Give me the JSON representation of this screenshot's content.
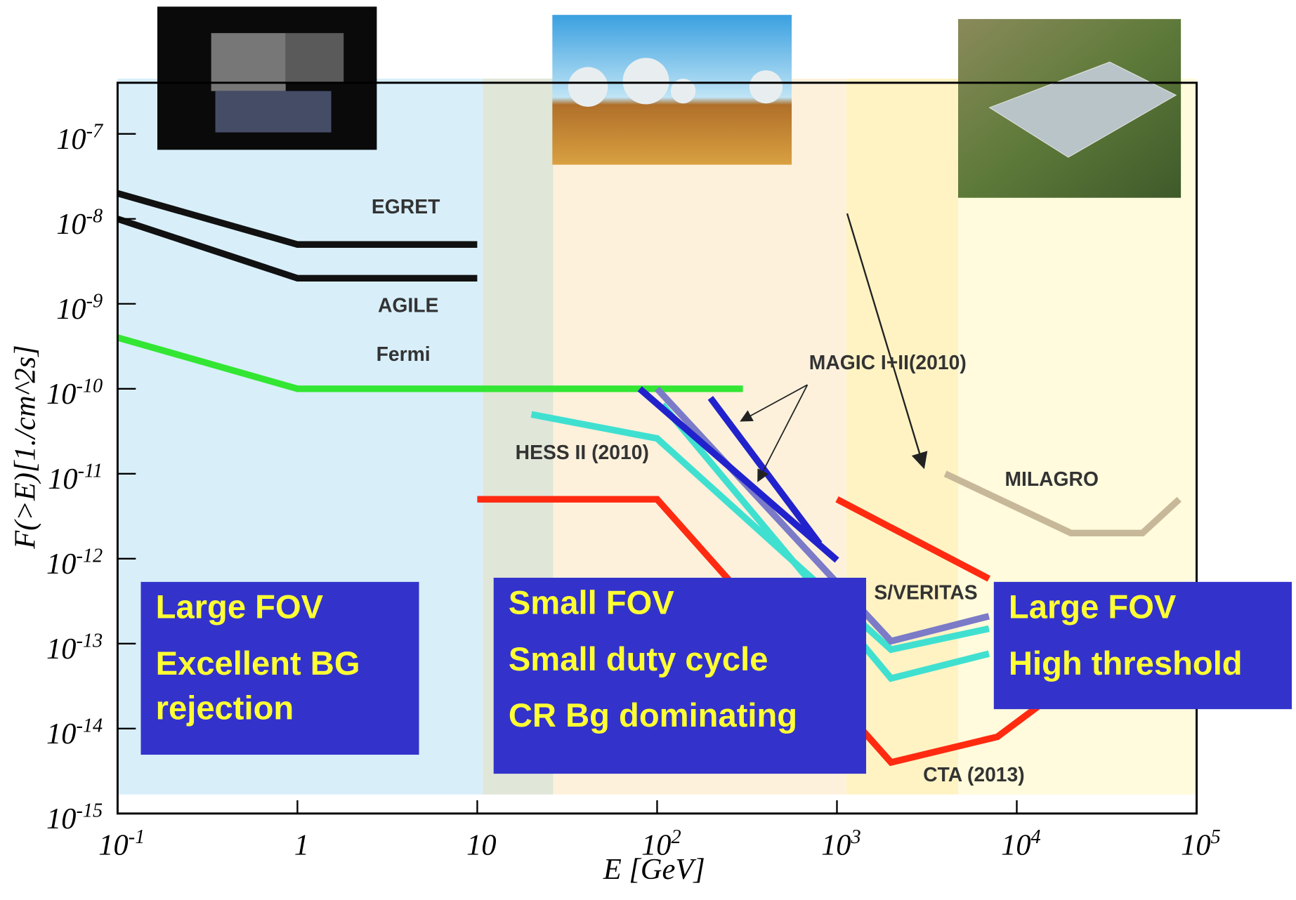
{
  "chart_data": {
    "type": "line",
    "log_x": true,
    "log_y": true,
    "xlabel": "E [GeV]",
    "ylabel": "F(>E)[1./cm^2s]",
    "xlim": [
      0.1,
      100000
    ],
    "ylim": [
      1e-15,
      4e-07
    ],
    "xticks": [
      {
        "value": 0.1,
        "label": "10-1"
      },
      1,
      10,
      {
        "value": 100,
        "label": "102"
      },
      {
        "value": 1000,
        "label": "103"
      },
      {
        "value": 10000,
        "label": "104"
      },
      {
        "value": 100000,
        "label": "105"
      }
    ],
    "yticks": [
      {
        "value": 1e-07,
        "label": "10-7"
      },
      {
        "value": 1e-08,
        "label": "10-8"
      },
      {
        "value": 1e-09,
        "label": "10-9"
      },
      {
        "value": 1e-10,
        "label": "10-10"
      },
      {
        "value": 1e-11,
        "label": "10-11"
      },
      {
        "value": 1e-12,
        "label": "10-12"
      },
      {
        "value": 1e-13,
        "label": "10-13"
      },
      {
        "value": 1e-14,
        "label": "10-14"
      },
      {
        "value": 1e-15,
        "label": "10-15"
      }
    ],
    "series": [
      {
        "name": "EGRET",
        "color": "#111111",
        "x": [
          0.1,
          1,
          10
        ],
        "values": [
          2e-08,
          5e-09,
          5e-09
        ]
      },
      {
        "name": "AGILE",
        "color": "#111111",
        "x": [
          0.1,
          1,
          10
        ],
        "values": [
          1e-08,
          2e-09,
          2e-09
        ]
      },
      {
        "name": "Fermi",
        "color": "#33e633",
        "x": [
          0.1,
          1,
          300
        ],
        "values": [
          4e-10,
          1e-10,
          1e-10
        ]
      },
      {
        "name": "HESS II (2010)",
        "color": "#40e0d0",
        "x": [
          20,
          100,
          2000,
          7000
        ],
        "values": [
          5e-11,
          2.6e-11,
          8.5e-14,
          1.5e-13
        ]
      },
      {
        "color": "#40e0d0",
        "x": [
          107,
          2000,
          7000
        ],
        "values": [
          6.5e-11,
          3.9e-14,
          7.6e-14
        ]
      },
      {
        "color": "#7b7bc8",
        "x": [
          100,
          2000,
          7000
        ],
        "values": [
          1e-10,
          1.07e-13,
          2.1e-13
        ]
      },
      {
        "color": "#2222cc",
        "x": [
          80,
          1000
        ],
        "values": [
          1e-10,
          9.6e-13
        ]
      },
      {
        "color": "#2222cc",
        "x": [
          198,
          800
        ],
        "values": [
          7.8e-11,
          1.5e-12
        ]
      },
      {
        "color": "#ff2a10",
        "x": [
          10,
          100,
          2000,
          7800,
          14800
        ],
        "values": [
          5e-12,
          5e-12,
          4e-15,
          8e-15,
          2.2e-14
        ]
      },
      {
        "color": "#ff2a10",
        "x": [
          1000,
          7000
        ],
        "values": [
          5e-12,
          5.8e-13
        ]
      },
      {
        "name": "MILAGRO",
        "color": "#c8b89a",
        "x": [
          4000,
          20000,
          50000,
          80000
        ],
        "values": [
          1e-11,
          2e-12,
          2e-12,
          5e-12
        ]
      }
    ],
    "annotations": [
      "MAGIC I+II(2010)",
      "S/VERITAS",
      "CTA (2013)"
    ],
    "boxes": [
      [
        "Large FOV",
        "Excellent BG rejection"
      ],
      [
        "Small FOV",
        "Small duty cycle",
        "CR Bg dominating"
      ],
      [
        "Large FOV",
        "High threshold"
      ]
    ]
  }
}
